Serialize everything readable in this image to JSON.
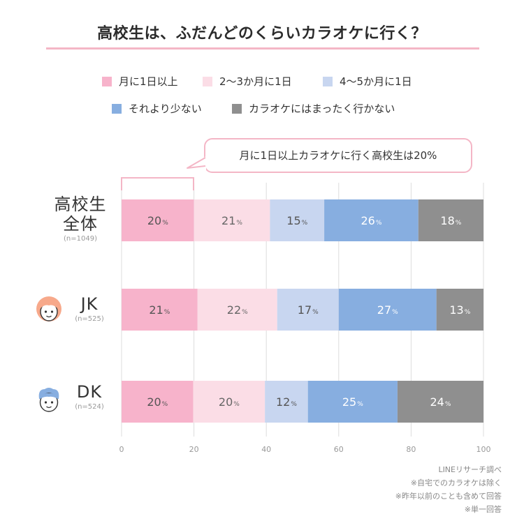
{
  "title": "高校生は、ふだんどのくらいカラオケに行く？",
  "callout": "月に1日以上カラオケに行く高校生は20%",
  "colors": {
    "monthly1plus": "#f7b3cb",
    "every2to3": "#fbdde6",
    "every4to5": "#c8d6f0",
    "less": "#87aee0",
    "never": "#8f8f8f",
    "accent_line": "#f4b6c6",
    "grid": "#dddddd"
  },
  "legend": [
    {
      "label": "月に1日以上",
      "color": "#f7b3cb"
    },
    {
      "label": "2〜3か月に1日",
      "color": "#fbdde6"
    },
    {
      "label": "4〜5か月に1日",
      "color": "#c8d6f0"
    },
    {
      "label": "それより少ない",
      "color": "#87aee0"
    },
    {
      "label": "カラオケにはまったく行かない",
      "color": "#8f8f8f"
    }
  ],
  "rows": [
    {
      "label1": "高校生",
      "label2": "全体",
      "n": "(n=1049)"
    },
    {
      "label1": "JK",
      "label2": "",
      "n": "(n=525)"
    },
    {
      "label1": "DK",
      "label2": "",
      "n": "(n=524)"
    }
  ],
  "notes": [
    "LINEリサーチ調べ",
    "※自宅でのカラオケは除く",
    "※昨年以前のことも含めて回答",
    "※単一回答"
  ],
  "chart_data": {
    "type": "bar",
    "orientation": "horizontal",
    "stacked": true,
    "title": "高校生は、ふだんどのくらいカラオケに行く？",
    "categories": [
      "高校生全体",
      "JK",
      "DK"
    ],
    "series": [
      {
        "name": "月に1日以上",
        "values": [
          20,
          21,
          20
        ]
      },
      {
        "name": "2〜3か月に1日",
        "values": [
          21,
          22,
          20
        ]
      },
      {
        "name": "4〜5か月に1日",
        "values": [
          15,
          17,
          12
        ]
      },
      {
        "name": "それより少ない",
        "values": [
          26,
          27,
          25
        ]
      },
      {
        "name": "カラオケにはまったく行かない",
        "values": [
          18,
          13,
          24
        ]
      }
    ],
    "xlim": [
      0,
      100
    ],
    "xticks": [
      "0",
      "20",
      "40",
      "60",
      "80",
      "100"
    ],
    "unit": "%",
    "grid": true,
    "legend_position": "top"
  }
}
